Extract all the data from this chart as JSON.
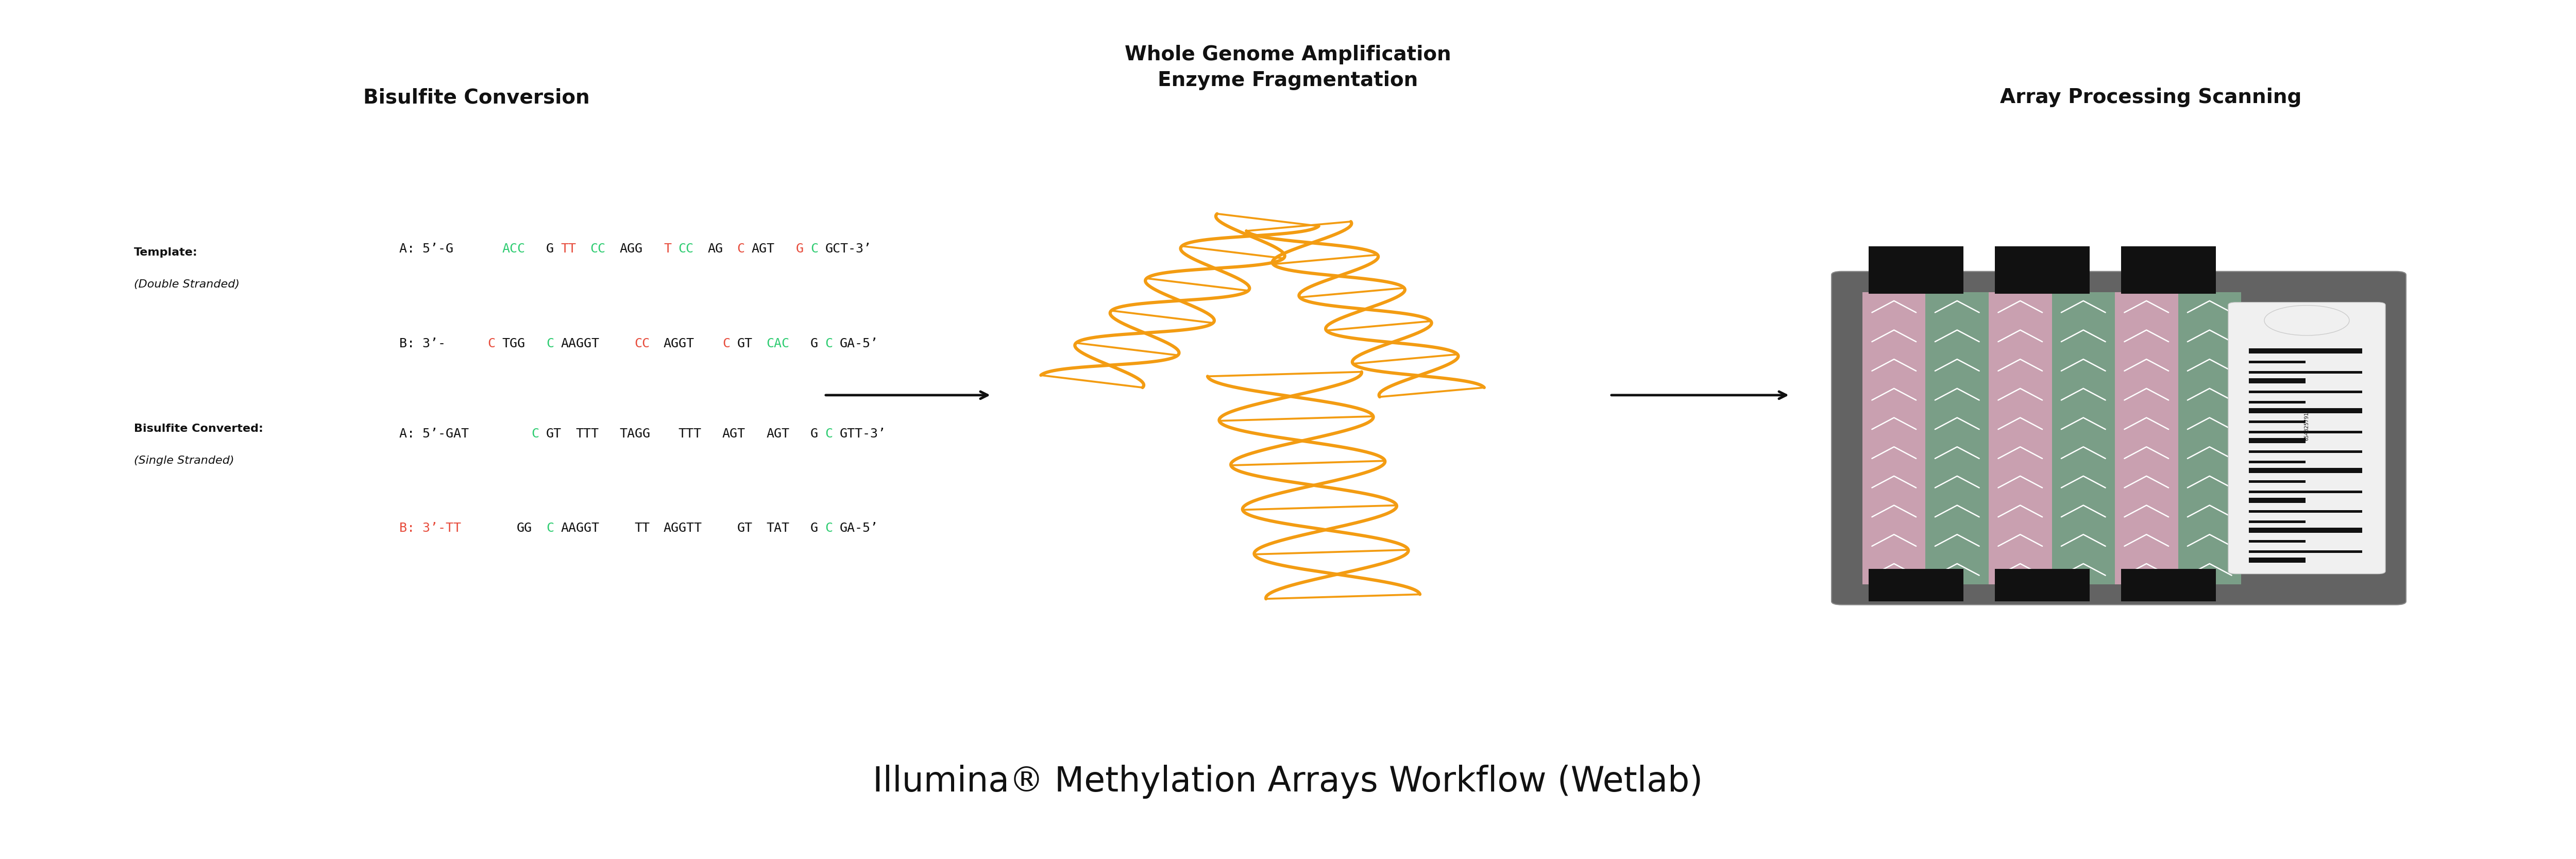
{
  "title": "Illumina® Methylation Arrays Workflow (Wetlab)",
  "title_fontsize": 48,
  "bg_color": "#ffffff",
  "header_fontsize": 28,
  "label_fontsize": 16,
  "seq_fontsize": 18,
  "dna_color": "#f39c12",
  "chip_bg": "#636363",
  "chip_inner": "#4a4a4a",
  "chip_pink": "#c9a0b0",
  "chip_green": "#7a9e87",
  "chip_white_line": "#ffffff",
  "seqA1": [
    {
      "text": "A: 5’-G",
      "color": "#111111"
    },
    {
      "text": "ACC",
      "color": "#2ecc71"
    },
    {
      "text": "G",
      "color": "#111111"
    },
    {
      "text": "TT",
      "color": "#e74c3c"
    },
    {
      "text": "CC",
      "color": "#2ecc71"
    },
    {
      "text": "AGG",
      "color": "#111111"
    },
    {
      "text": "T",
      "color": "#e74c3c"
    },
    {
      "text": "CC",
      "color": "#2ecc71"
    },
    {
      "text": "AG",
      "color": "#111111"
    },
    {
      "text": "C",
      "color": "#e74c3c"
    },
    {
      "text": "AGT",
      "color": "#111111"
    },
    {
      "text": "G",
      "color": "#e74c3c"
    },
    {
      "text": "C",
      "color": "#2ecc71"
    },
    {
      "text": "GCT-3’",
      "color": "#111111"
    }
  ],
  "seqB1": [
    {
      "text": "B: 3’-",
      "color": "#111111"
    },
    {
      "text": "C",
      "color": "#e74c3c"
    },
    {
      "text": "TGG",
      "color": "#111111"
    },
    {
      "text": "C",
      "color": "#2ecc71"
    },
    {
      "text": "AAGGT",
      "color": "#111111"
    },
    {
      "text": "CC",
      "color": "#e74c3c"
    },
    {
      "text": "AGGT",
      "color": "#111111"
    },
    {
      "text": "C",
      "color": "#e74c3c"
    },
    {
      "text": "GT",
      "color": "#111111"
    },
    {
      "text": "CAC",
      "color": "#2ecc71"
    },
    {
      "text": "G",
      "color": "#111111"
    },
    {
      "text": "C",
      "color": "#2ecc71"
    },
    {
      "text": "GA-5’",
      "color": "#111111"
    }
  ],
  "seqA2": [
    {
      "text": "A: 5’-GAT",
      "color": "#111111"
    },
    {
      "text": "C",
      "color": "#2ecc71"
    },
    {
      "text": "GT",
      "color": "#111111"
    },
    {
      "text": "TTT",
      "color": "#111111"
    },
    {
      "text": "TAGG",
      "color": "#111111"
    },
    {
      "text": "TTT",
      "color": "#111111"
    },
    {
      "text": "AGT",
      "color": "#111111"
    },
    {
      "text": "AGT",
      "color": "#111111"
    },
    {
      "text": "G",
      "color": "#111111"
    },
    {
      "text": "C",
      "color": "#2ecc71"
    },
    {
      "text": "GTT-3’",
      "color": "#111111"
    }
  ],
  "seqB2": [
    {
      "text": "B: 3’-TT",
      "color": "#e74c3c"
    },
    {
      "text": "GG",
      "color": "#111111"
    },
    {
      "text": "C",
      "color": "#2ecc71"
    },
    {
      "text": "AAGGT",
      "color": "#111111"
    },
    {
      "text": "TT",
      "color": "#111111"
    },
    {
      "text": "AGGTT",
      "color": "#111111"
    },
    {
      "text": "GT",
      "color": "#111111"
    },
    {
      "text": "TAT",
      "color": "#111111"
    },
    {
      "text": "G",
      "color": "#111111"
    },
    {
      "text": "C",
      "color": "#2ecc71"
    },
    {
      "text": "GA-5’",
      "color": "#111111"
    }
  ]
}
